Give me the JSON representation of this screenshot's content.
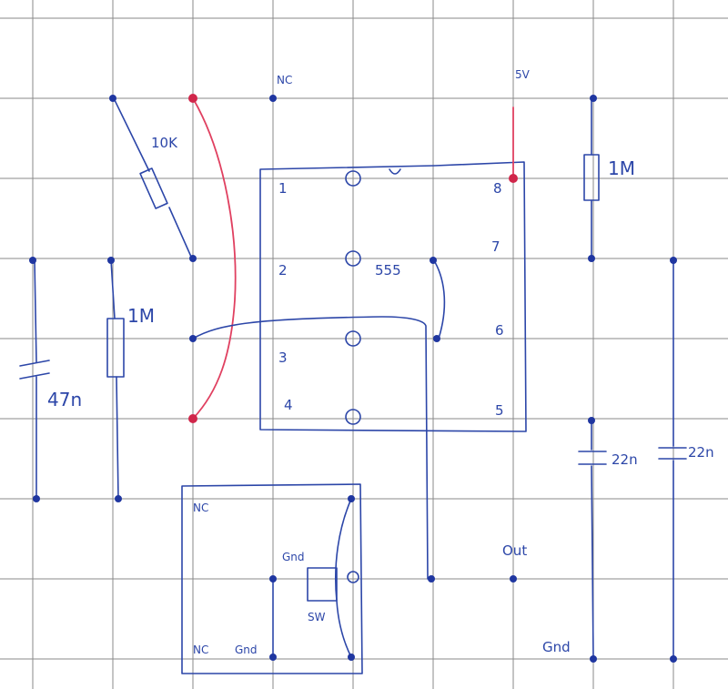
{
  "diagram": {
    "ic_label": "555",
    "pins": [
      "1",
      "2",
      "3",
      "4",
      "5",
      "6",
      "7",
      "8"
    ],
    "resistor_top": "10K",
    "resistor_left": "1M",
    "resistor_right": "1M",
    "capacitor_left": "47n",
    "capacitor_mid": "22n",
    "capacitor_right": "22n",
    "nc_top": "NC",
    "supply": "5V",
    "output": "Out",
    "gnd_switch": "Gnd",
    "gnd_bottom": "Gnd",
    "switch_nc_top": "NC",
    "switch_nc_bottom": "NC",
    "switch_gnd": "Gnd",
    "switch_label": "SW"
  },
  "colors": {
    "ink": "#2c46a8",
    "red_wire": "#e04060",
    "grid": "#8a8a8a"
  }
}
